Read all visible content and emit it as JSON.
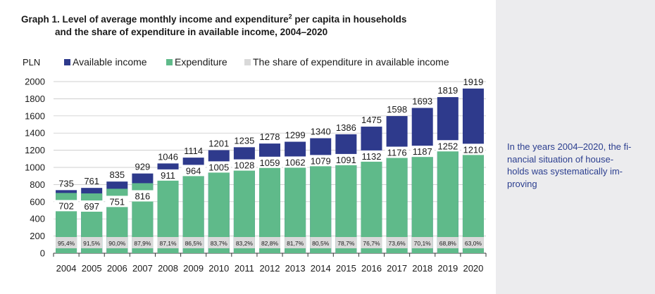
{
  "title": {
    "line1_pre": "Graph 1. Level of average monthly income and expenditure",
    "line1_sup": "2",
    "line1_post": " per capita in households",
    "line2": "and the share of expenditure in available income, 2004–2020"
  },
  "side_note": "In the years 2004–2020, the fi-\nnancial situation of house-\nholds was systematically im-\nproving",
  "colors": {
    "available_income": "#2e3a8c",
    "expenditure": "#5fba8a",
    "share": "#d9d9d9",
    "sidebar": "#ececee",
    "grid": "#bfbfbf",
    "note_text": "#2b3e8f"
  },
  "chart_data": {
    "type": "bar",
    "stacked_overlay": true,
    "ylabel": "PLN",
    "ylim": [
      0,
      2000
    ],
    "yticks": [
      0,
      200,
      400,
      600,
      800,
      1000,
      1200,
      1400,
      1600,
      1800,
      2000
    ],
    "grid": true,
    "legend_position": "top",
    "categories": [
      "2004",
      "2005",
      "2006",
      "2007",
      "2008",
      "2009",
      "2010",
      "2011",
      "2012",
      "2013",
      "2014",
      "2015",
      "2016",
      "2017",
      "2018",
      "2019",
      "2020"
    ],
    "series": [
      {
        "name": "Available income",
        "values": [
          735,
          761,
          835,
          929,
          1046,
          1114,
          1201,
          1235,
          1278,
          1299,
          1340,
          1386,
          1475,
          1598,
          1693,
          1819,
          1919
        ]
      },
      {
        "name": "Expenditure",
        "values": [
          702,
          697,
          751,
          816,
          911,
          964,
          1005,
          1028,
          1059,
          1062,
          1079,
          1091,
          1132,
          1176,
          1187,
          1252,
          1210
        ]
      },
      {
        "name": "The share of expenditure in available income",
        "values": [
          "95,4%",
          "91,5%",
          "90,0%",
          "87,9%",
          "87,1%",
          "86,5%",
          "83,7%",
          "83,2%",
          "82,8%",
          "81,7%",
          "80,5%",
          "78,7%",
          "76,7%",
          "73,6%",
          "70,1%",
          "68,8%",
          "63,0%"
        ]
      }
    ]
  }
}
